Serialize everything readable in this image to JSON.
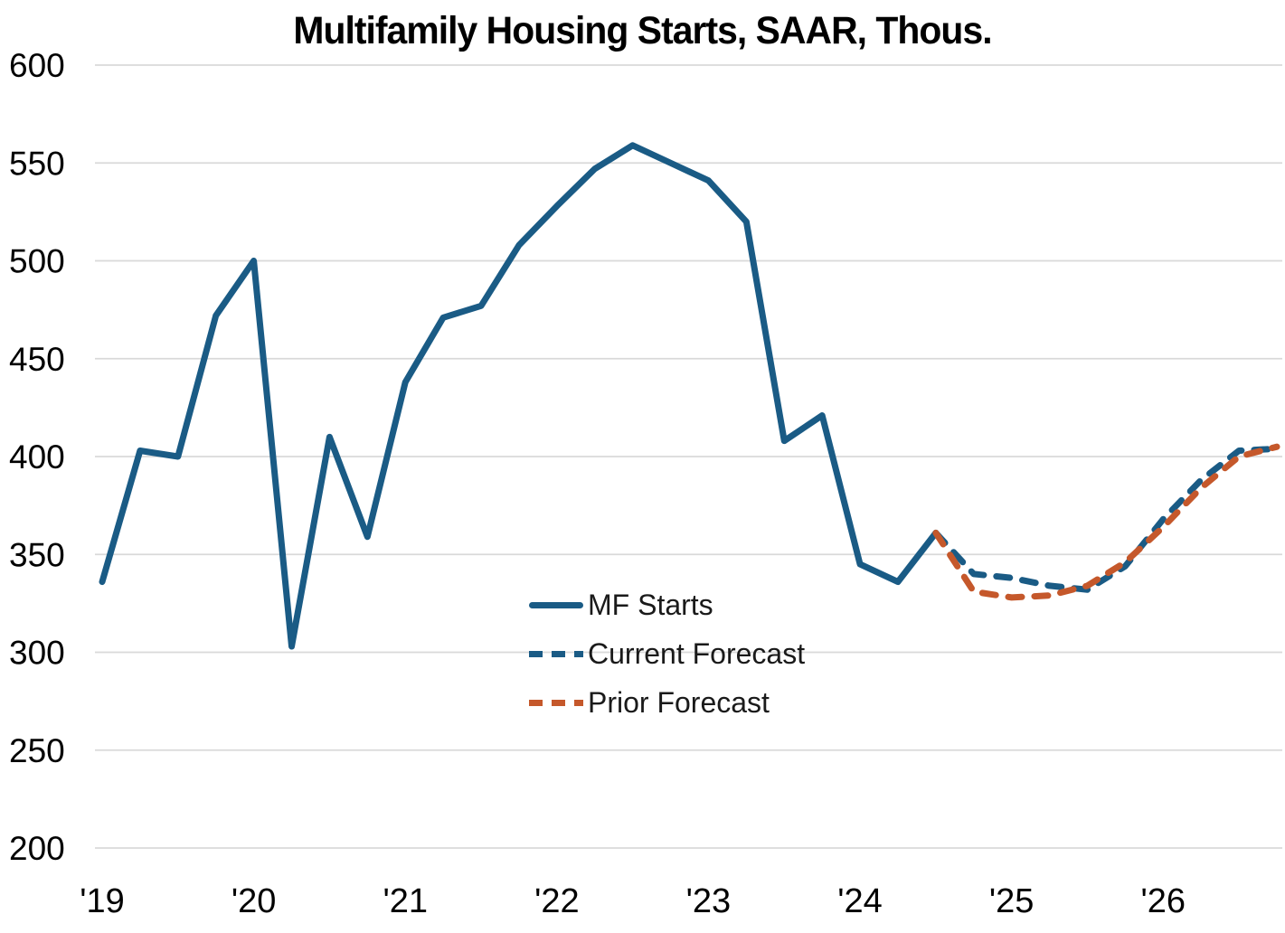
{
  "chart": {
    "title": "Multifamily Housing Starts, SAAR, Thous."
  },
  "chart_data": {
    "type": "line",
    "title": "Multifamily Housing Starts, SAAR, Thous.",
    "x_unit": "quarterly",
    "x_start": "2019Q1",
    "x_end": "2026Q4",
    "n_points": 32,
    "x_tick_labels": [
      "'19",
      "'20",
      "'21",
      "'22",
      "'23",
      "'24",
      "'25",
      "'26"
    ],
    "x_tick_quarter_indices": [
      0,
      4,
      8,
      12,
      16,
      20,
      24,
      28
    ],
    "ylim": [
      200,
      600
    ],
    "y_ticks": [
      600,
      550,
      500,
      450,
      400,
      350,
      300,
      250,
      200
    ],
    "grid": "horizontal-only",
    "gridline_color": "#d9d9d9",
    "legend_position": "inside-lower-middle",
    "series": [
      {
        "name": "MF Starts",
        "style": "solid",
        "color": "#1a5b85",
        "start_index": 0,
        "values": [
          336,
          403,
          400,
          472,
          500,
          303,
          410,
          359,
          438,
          471,
          477,
          508,
          528,
          547,
          559,
          550,
          541,
          520,
          408,
          421,
          345,
          336,
          361
        ]
      },
      {
        "name": "Current Forecast",
        "style": "dashed",
        "color": "#1a5b85",
        "start_index": 22,
        "values": [
          361,
          340,
          338,
          334,
          332,
          344,
          368,
          388,
          403,
          404
        ]
      },
      {
        "name": "Prior Forecast",
        "style": "dashed",
        "color": "#c5582b",
        "start_index": 22,
        "values": [
          361,
          331,
          328,
          329,
          334,
          346,
          364,
          384,
          400,
          405
        ]
      }
    ]
  }
}
